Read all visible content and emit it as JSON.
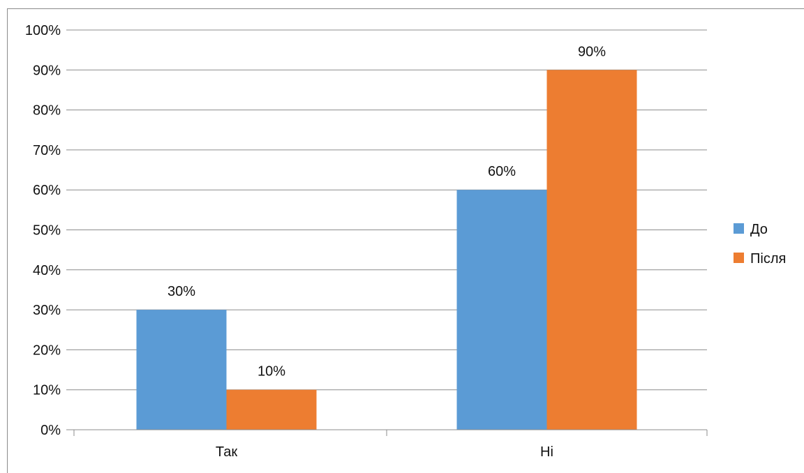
{
  "chart_data": {
    "type": "bar",
    "categories": [
      "Так",
      "Ні"
    ],
    "series": [
      {
        "name": "До",
        "values": [
          30,
          60
        ],
        "color": "#5B9BD5"
      },
      {
        "name": "Після",
        "values": [
          10,
          90
        ],
        "color": "#ED7D31"
      }
    ],
    "data_labels": [
      [
        "30%",
        "60%"
      ],
      [
        "10%",
        "90%"
      ]
    ],
    "yticks": [
      "0%",
      "10%",
      "20%",
      "30%",
      "40%",
      "50%",
      "60%",
      "70%",
      "80%",
      "90%",
      "100%"
    ],
    "ylim": [
      0,
      100
    ],
    "grid": true,
    "legend": "right"
  }
}
